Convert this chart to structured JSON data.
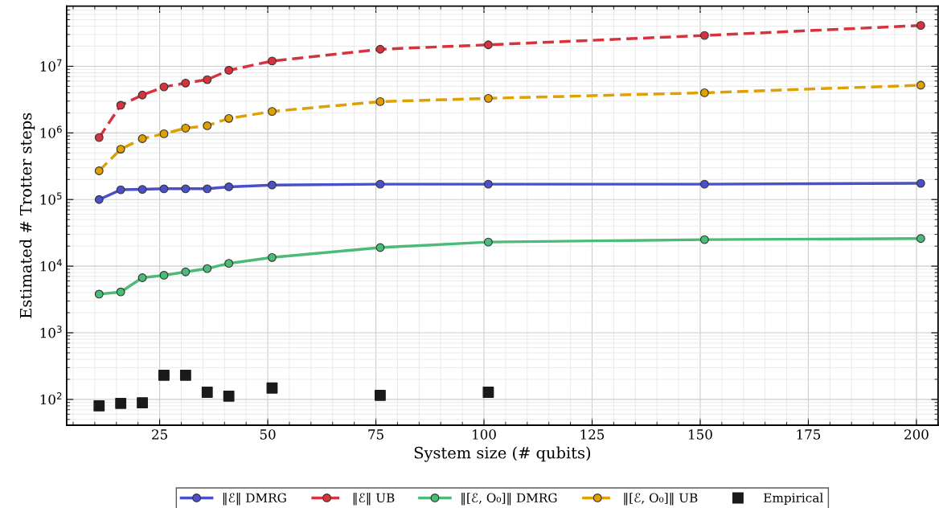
{
  "chart_data": {
    "type": "line",
    "xlabel": "System size (# qubits)",
    "ylabel": "Estimated # Trotter steps",
    "x": [
      11,
      16,
      21,
      26,
      31,
      36,
      41,
      51,
      76,
      101,
      151,
      201
    ],
    "series": [
      {
        "name": "‖ℰ‖ DMRG",
        "color": "#4a50c8",
        "line_style": "solid",
        "marker": "circle",
        "values": [
          100000,
          140000,
          142000,
          145000,
          145000,
          145000,
          155000,
          165000,
          170000,
          170000,
          170000,
          175000
        ]
      },
      {
        "name": "‖ℰ‖ UB",
        "color": "#d6333f",
        "line_style": "dashed",
        "marker": "circle",
        "values": [
          850000,
          2600000,
          3700000,
          4900000,
          5600000,
          6300000,
          8700000,
          12000000,
          18000000,
          21000000,
          29000000,
          41000000
        ]
      },
      {
        "name": "‖[ℰ, O₀]‖ DMRG",
        "color": "#4cbb78",
        "line_style": "solid",
        "marker": "circle",
        "values": [
          3800,
          4100,
          6700,
          7300,
          8200,
          9200,
          11000,
          13500,
          19000,
          23000,
          25000,
          26000
        ]
      },
      {
        "name": "‖[ℰ, O₀]‖ UB",
        "color": "#e0a000",
        "line_style": "dashed",
        "marker": "circle",
        "values": [
          270000,
          570000,
          820000,
          970000,
          1180000,
          1280000,
          1650000,
          2100000,
          2950000,
          3300000,
          4000000,
          5200000
        ]
      },
      {
        "name": "Empirical",
        "type": "scatter",
        "color": "#1a1a1a",
        "marker": "square",
        "x": [
          11,
          16,
          21,
          26,
          31,
          36,
          41,
          51,
          76,
          101
        ],
        "values": [
          80,
          87,
          89,
          230,
          230,
          128,
          112,
          148,
          115,
          128
        ]
      }
    ],
    "log": "y",
    "xlim": [
      3.5,
      205
    ],
    "xticks": [
      25,
      50,
      75,
      100,
      125,
      150,
      175,
      200
    ],
    "ylim": [
      41,
      80000000
    ],
    "yticks": [
      {
        "value": 100,
        "label": "10$^{2}$"
      },
      {
        "value": 1000,
        "label": "10$^{3}$"
      },
      {
        "value": 10000,
        "label": "10$^{4}$"
      },
      {
        "value": 100000,
        "label": "10$^{5}$"
      },
      {
        "value": 1000000,
        "label": "10$^{6}$"
      },
      {
        "value": 10000000,
        "label": "10$^{7}$"
      }
    ],
    "grid": true,
    "legend": "bottom"
  }
}
